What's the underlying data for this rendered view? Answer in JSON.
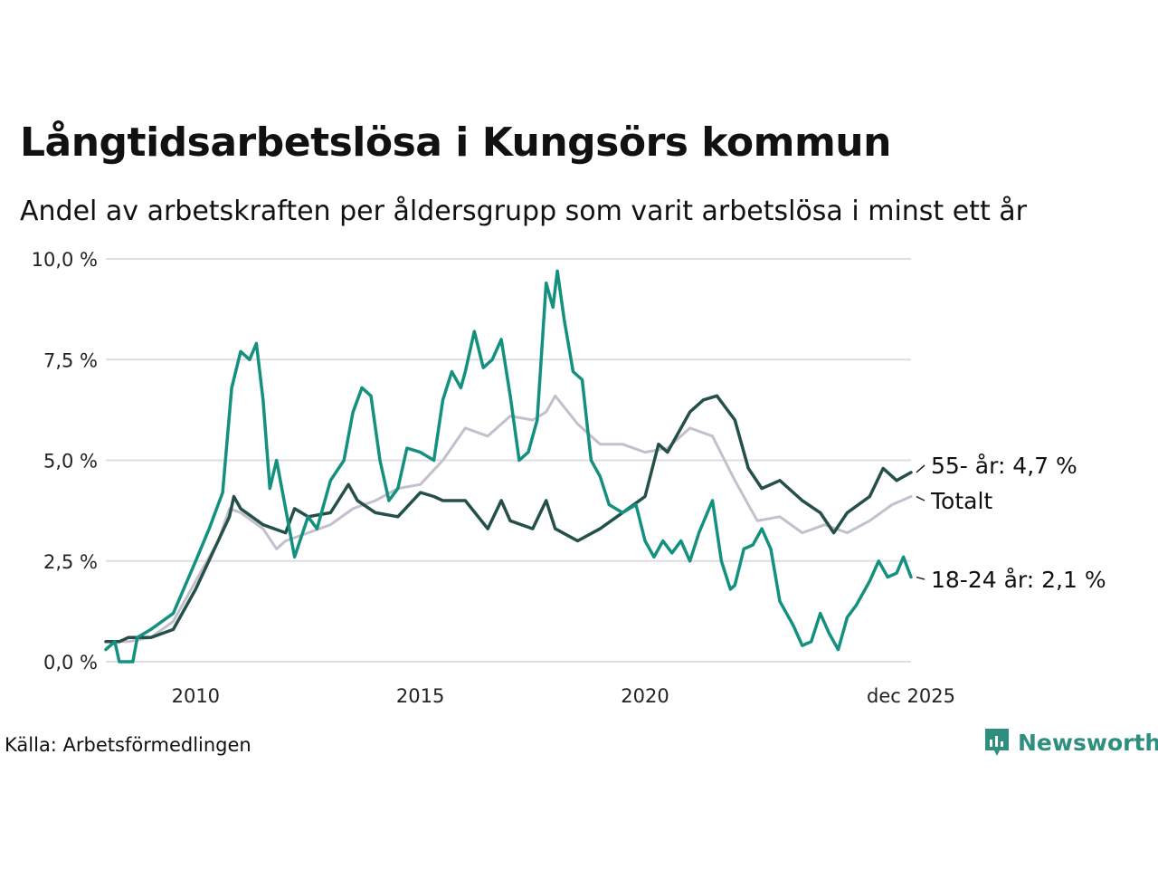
{
  "title": "Långtidsarbetslösa i Kungsörs kommun",
  "subtitle": "Andel av arbetskraften per åldersgrupp som varit arbetslösa i minst ett år",
  "source": "Källa: Arbetsförmedlingen",
  "brand": "Newsworthy",
  "colors": {
    "young": "#14907f",
    "total": "#c4bfcc",
    "older": "#25504a",
    "grid": "#dedde2"
  },
  "chart_data": {
    "type": "line",
    "title": "Långtidsarbetslösa i Kungsörs kommun",
    "ylim": [
      0,
      10
    ],
    "yticks": [
      0,
      2.5,
      5,
      7.5,
      10
    ],
    "ytick_labels": [
      "0,0 %",
      "2,5 %",
      "5,0 %",
      "7,5 %",
      "10,0 %"
    ],
    "xlim": [
      2008.0,
      2025.92
    ],
    "xticks": [
      2010,
      2015,
      2020,
      2025.92
    ],
    "xtick_labels": [
      "2010",
      "2015",
      "2020",
      "dec 2025"
    ],
    "series": [
      {
        "name": "Totalt",
        "label": "Totalt",
        "color": "total",
        "points": [
          [
            2008.0,
            0.5
          ],
          [
            2008.5,
            0.5
          ],
          [
            2009.0,
            0.6
          ],
          [
            2009.5,
            1.0
          ],
          [
            2010.0,
            2.0
          ],
          [
            2010.5,
            3.0
          ],
          [
            2010.75,
            3.8
          ],
          [
            2011.0,
            3.7
          ],
          [
            2011.5,
            3.3
          ],
          [
            2011.8,
            2.8
          ],
          [
            2012.0,
            3.0
          ],
          [
            2012.5,
            3.2
          ],
          [
            2013.0,
            3.4
          ],
          [
            2013.5,
            3.8
          ],
          [
            2014.0,
            4.0
          ],
          [
            2014.5,
            4.3
          ],
          [
            2015.0,
            4.4
          ],
          [
            2015.5,
            5.0
          ],
          [
            2016.0,
            5.8
          ],
          [
            2016.5,
            5.6
          ],
          [
            2017.0,
            6.1
          ],
          [
            2017.5,
            6.0
          ],
          [
            2017.8,
            6.2
          ],
          [
            2018.0,
            6.6
          ],
          [
            2018.5,
            5.9
          ],
          [
            2019.0,
            5.4
          ],
          [
            2019.5,
            5.4
          ],
          [
            2020.0,
            5.2
          ],
          [
            2020.5,
            5.3
          ],
          [
            2021.0,
            5.8
          ],
          [
            2021.5,
            5.6
          ],
          [
            2022.0,
            4.5
          ],
          [
            2022.5,
            3.5
          ],
          [
            2023.0,
            3.6
          ],
          [
            2023.5,
            3.2
          ],
          [
            2024.0,
            3.4
          ],
          [
            2024.5,
            3.2
          ],
          [
            2025.0,
            3.5
          ],
          [
            2025.5,
            3.9
          ],
          [
            2025.92,
            4.1
          ]
        ]
      },
      {
        "name": "55- år",
        "label": "55- år: 4,7 %",
        "color": "older",
        "points": [
          [
            2008.0,
            0.5
          ],
          [
            2008.3,
            0.5
          ],
          [
            2008.5,
            0.6
          ],
          [
            2009.0,
            0.6
          ],
          [
            2009.5,
            0.8
          ],
          [
            2010.0,
            1.8
          ],
          [
            2010.5,
            3.0
          ],
          [
            2010.75,
            3.6
          ],
          [
            2010.85,
            4.1
          ],
          [
            2011.0,
            3.8
          ],
          [
            2011.5,
            3.4
          ],
          [
            2012.0,
            3.2
          ],
          [
            2012.2,
            3.8
          ],
          [
            2012.5,
            3.6
          ],
          [
            2013.0,
            3.7
          ],
          [
            2013.4,
            4.4
          ],
          [
            2013.6,
            4.0
          ],
          [
            2014.0,
            3.7
          ],
          [
            2014.5,
            3.6
          ],
          [
            2015.0,
            4.2
          ],
          [
            2015.3,
            4.1
          ],
          [
            2015.5,
            4.0
          ],
          [
            2016.0,
            4.0
          ],
          [
            2016.5,
            3.3
          ],
          [
            2016.8,
            4.0
          ],
          [
            2017.0,
            3.5
          ],
          [
            2017.5,
            3.3
          ],
          [
            2017.8,
            4.0
          ],
          [
            2018.0,
            3.3
          ],
          [
            2018.5,
            3.0
          ],
          [
            2019.0,
            3.3
          ],
          [
            2019.5,
            3.7
          ],
          [
            2020.0,
            4.1
          ],
          [
            2020.3,
            5.4
          ],
          [
            2020.5,
            5.2
          ],
          [
            2021.0,
            6.2
          ],
          [
            2021.3,
            6.5
          ],
          [
            2021.6,
            6.6
          ],
          [
            2022.0,
            6.0
          ],
          [
            2022.3,
            4.8
          ],
          [
            2022.6,
            4.3
          ],
          [
            2023.0,
            4.5
          ],
          [
            2023.5,
            4.0
          ],
          [
            2023.9,
            3.7
          ],
          [
            2024.2,
            3.2
          ],
          [
            2024.5,
            3.7
          ],
          [
            2025.0,
            4.1
          ],
          [
            2025.3,
            4.8
          ],
          [
            2025.6,
            4.5
          ],
          [
            2025.92,
            4.7
          ]
        ]
      },
      {
        "name": "18-24 år",
        "label": "18-24 år: 2,1 %",
        "color": "young",
        "points": [
          [
            2008.0,
            0.3
          ],
          [
            2008.2,
            0.5
          ],
          [
            2008.3,
            0.0
          ],
          [
            2008.6,
            0.0
          ],
          [
            2008.7,
            0.6
          ],
          [
            2009.0,
            0.8
          ],
          [
            2009.5,
            1.2
          ],
          [
            2010.0,
            2.5
          ],
          [
            2010.3,
            3.3
          ],
          [
            2010.6,
            4.2
          ],
          [
            2010.8,
            6.8
          ],
          [
            2011.0,
            7.7
          ],
          [
            2011.2,
            7.5
          ],
          [
            2011.35,
            7.9
          ],
          [
            2011.5,
            6.5
          ],
          [
            2011.65,
            4.3
          ],
          [
            2011.8,
            5.0
          ],
          [
            2012.0,
            3.8
          ],
          [
            2012.2,
            2.6
          ],
          [
            2012.5,
            3.6
          ],
          [
            2012.7,
            3.3
          ],
          [
            2013.0,
            4.5
          ],
          [
            2013.3,
            5.0
          ],
          [
            2013.5,
            6.2
          ],
          [
            2013.7,
            6.8
          ],
          [
            2013.9,
            6.6
          ],
          [
            2014.1,
            5.0
          ],
          [
            2014.3,
            4.0
          ],
          [
            2014.5,
            4.3
          ],
          [
            2014.7,
            5.3
          ],
          [
            2015.0,
            5.2
          ],
          [
            2015.3,
            5.0
          ],
          [
            2015.5,
            6.5
          ],
          [
            2015.7,
            7.2
          ],
          [
            2015.9,
            6.8
          ],
          [
            2016.0,
            7.2
          ],
          [
            2016.2,
            8.2
          ],
          [
            2016.4,
            7.3
          ],
          [
            2016.6,
            7.5
          ],
          [
            2016.8,
            8.0
          ],
          [
            2017.0,
            6.6
          ],
          [
            2017.2,
            5.0
          ],
          [
            2017.4,
            5.2
          ],
          [
            2017.6,
            6.0
          ],
          [
            2017.8,
            9.4
          ],
          [
            2017.95,
            8.8
          ],
          [
            2018.05,
            9.7
          ],
          [
            2018.2,
            8.5
          ],
          [
            2018.4,
            7.2
          ],
          [
            2018.6,
            7.0
          ],
          [
            2018.8,
            5.0
          ],
          [
            2019.0,
            4.6
          ],
          [
            2019.2,
            3.9
          ],
          [
            2019.5,
            3.7
          ],
          [
            2019.8,
            3.9
          ],
          [
            2020.0,
            3.0
          ],
          [
            2020.2,
            2.6
          ],
          [
            2020.4,
            3.0
          ],
          [
            2020.6,
            2.7
          ],
          [
            2020.8,
            3.0
          ],
          [
            2021.0,
            2.5
          ],
          [
            2021.2,
            3.2
          ],
          [
            2021.5,
            4.0
          ],
          [
            2021.7,
            2.5
          ],
          [
            2021.9,
            1.8
          ],
          [
            2022.0,
            1.9
          ],
          [
            2022.2,
            2.8
          ],
          [
            2022.4,
            2.9
          ],
          [
            2022.6,
            3.3
          ],
          [
            2022.8,
            2.8
          ],
          [
            2023.0,
            1.5
          ],
          [
            2023.3,
            0.9
          ],
          [
            2023.5,
            0.4
          ],
          [
            2023.7,
            0.5
          ],
          [
            2023.9,
            1.2
          ],
          [
            2024.1,
            0.7
          ],
          [
            2024.3,
            0.3
          ],
          [
            2024.5,
            1.1
          ],
          [
            2024.7,
            1.4
          ],
          [
            2025.0,
            2.0
          ],
          [
            2025.2,
            2.5
          ],
          [
            2025.4,
            2.1
          ],
          [
            2025.6,
            2.2
          ],
          [
            2025.75,
            2.6
          ],
          [
            2025.92,
            2.1
          ]
        ]
      }
    ]
  }
}
